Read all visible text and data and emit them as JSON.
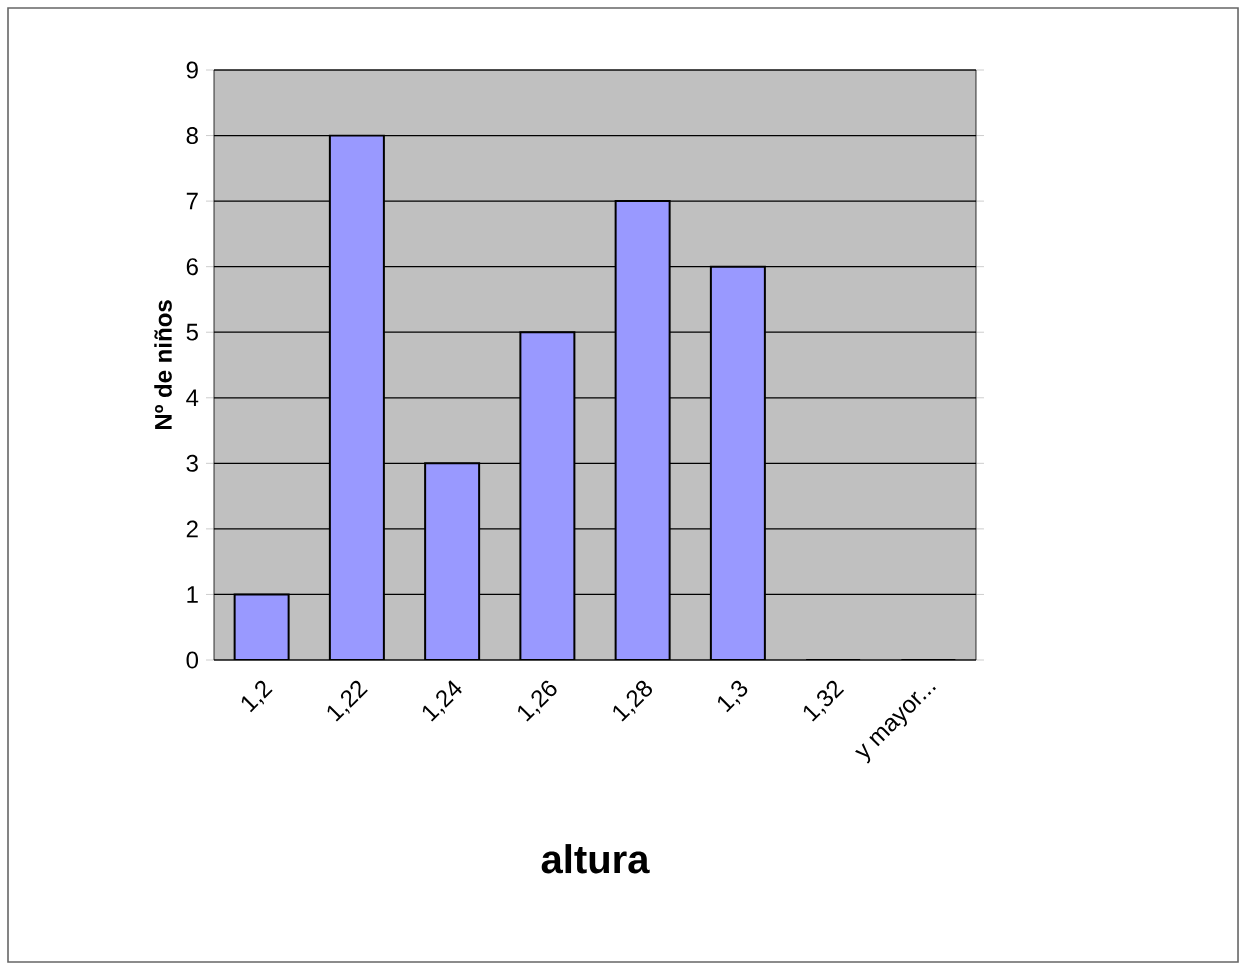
{
  "chart_data": {
    "type": "bar",
    "xlabel": "altura",
    "ylabel": "Nº de niños",
    "categories": [
      "1,2",
      "1,22",
      "1,24",
      "1,26",
      "1,28",
      "1,3",
      "1,32",
      "y mayor..."
    ],
    "values": [
      1,
      8,
      3,
      5,
      7,
      6,
      0,
      0
    ],
    "color": "#9999ff",
    "ylim": [
      0,
      9
    ],
    "yticks": [
      0,
      1,
      2,
      3,
      4,
      5,
      6,
      7,
      8,
      9
    ],
    "grid": "y"
  }
}
